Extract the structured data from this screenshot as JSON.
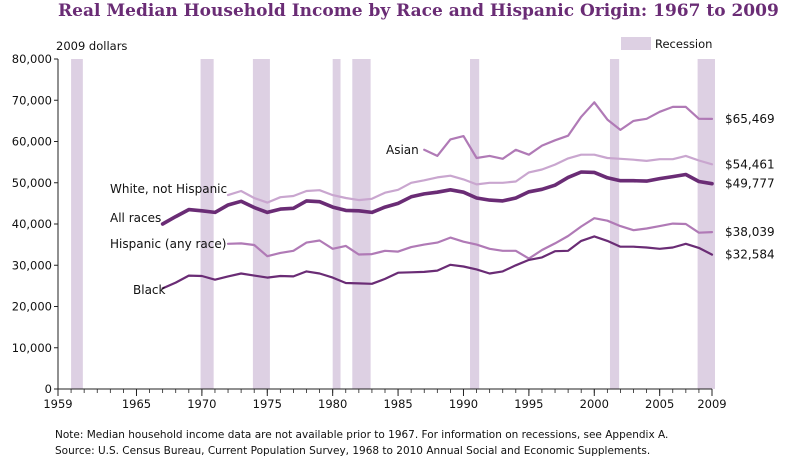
{
  "title": "Real Median Household Income by Race and Hispanic Origin: 1967 to 2009",
  "notes": {
    "note": "Note:  Median household income data are not available prior to 1967.  For information on recessions, see Appendix A.",
    "source": "Source:  U.S. Census Bureau, Current Population Survey, 1968 to 2010 Annual Social and Economic Supplements."
  },
  "chart_data": {
    "type": "line",
    "ylabel": "2009 dollars",
    "ylim": [
      0,
      80000
    ],
    "xlim": [
      1959,
      2009
    ],
    "yticks": [
      "0",
      "10,000",
      "20,000",
      "30,000",
      "40,000",
      "50,000",
      "60,000",
      "70,000",
      "80,000"
    ],
    "ytick_values": [
      0,
      10000,
      20000,
      30000,
      40000,
      50000,
      60000,
      70000,
      80000
    ],
    "xticks": [
      1959,
      1965,
      1970,
      1975,
      1980,
      1985,
      1990,
      1995,
      2000,
      2005,
      2009
    ],
    "grid": false,
    "legend": {
      "label": "Recession",
      "position": "top-right",
      "color": "#ddd0e3"
    },
    "recessions": [
      [
        1960,
        1960.9
      ],
      [
        1969.9,
        1970.9
      ],
      [
        1973.9,
        1975.2
      ],
      [
        1980,
        1980.6
      ],
      [
        1981.5,
        1982.9
      ],
      [
        1990.5,
        1991.2
      ],
      [
        2001.2,
        2001.9
      ],
      [
        2007.9,
        2009.5
      ]
    ],
    "series": [
      {
        "name": "Asian",
        "end_label": "$65,469",
        "color": "#b07ab6",
        "width": 2.2,
        "x": [
          1987,
          1988,
          1989,
          1990,
          1991,
          1992,
          1993,
          1994,
          1995,
          1996,
          1997,
          1998,
          1999,
          2000,
          2001,
          2002,
          2003,
          2004,
          2005,
          2006,
          2007,
          2008,
          2009
        ],
        "y": [
          58000,
          56500,
          60500,
          61300,
          56000,
          56500,
          55800,
          58000,
          56800,
          59000,
          60300,
          61400,
          66000,
          69500,
          65300,
          62800,
          65000,
          65500,
          67200,
          68400,
          68400,
          65500,
          65469
        ]
      },
      {
        "name": "White, not Hispanic",
        "end_label": "$54,461",
        "color": "#c9a6cf",
        "width": 2.2,
        "x": [
          1972,
          1973,
          1974,
          1975,
          1976,
          1977,
          1978,
          1979,
          1980,
          1981,
          1982,
          1983,
          1984,
          1985,
          1986,
          1987,
          1988,
          1989,
          1990,
          1991,
          1992,
          1993,
          1994,
          1995,
          1996,
          1997,
          1998,
          1999,
          2000,
          2001,
          2002,
          2003,
          2004,
          2005,
          2006,
          2007,
          2008,
          2009
        ],
        "y": [
          47000,
          48000,
          46300,
          45200,
          46500,
          46800,
          48000,
          48200,
          47000,
          46300,
          45800,
          46100,
          47600,
          48300,
          50000,
          50600,
          51300,
          51700,
          50800,
          49600,
          50000,
          50000,
          50300,
          52500,
          53200,
          54400,
          55900,
          56800,
          56800,
          56000,
          55800,
          55600,
          55300,
          55700,
          55700,
          56500,
          55400,
          54461
        ]
      },
      {
        "name": "All races",
        "end_label": "$49,777",
        "color": "#6a2c75",
        "width": 3.6,
        "x": [
          1967,
          1968,
          1969,
          1970,
          1971,
          1972,
          1973,
          1974,
          1975,
          1976,
          1977,
          1978,
          1979,
          1980,
          1981,
          1982,
          1983,
          1984,
          1985,
          1986,
          1987,
          1988,
          1989,
          1990,
          1991,
          1992,
          1993,
          1994,
          1995,
          1996,
          1997,
          1998,
          1999,
          2000,
          2001,
          2002,
          2003,
          2004,
          2005,
          2006,
          2007,
          2008,
          2009
        ],
        "y": [
          40000,
          41800,
          43500,
          43200,
          42800,
          44600,
          45500,
          44000,
          42800,
          43600,
          43800,
          45600,
          45400,
          44100,
          43300,
          43200,
          42800,
          44100,
          45000,
          46600,
          47300,
          47700,
          48300,
          47700,
          46300,
          45800,
          45600,
          46300,
          47800,
          48400,
          49400,
          51300,
          52600,
          52500,
          51200,
          50500,
          50500,
          50400,
          51000,
          51500,
          52000,
          50300,
          49777
        ]
      },
      {
        "name": "Hispanic (any race)",
        "end_label": "$38,039",
        "color": "#b07ab6",
        "width": 2.2,
        "x": [
          1972,
          1973,
          1974,
          1975,
          1976,
          1977,
          1978,
          1979,
          1980,
          1981,
          1982,
          1983,
          1984,
          1985,
          1986,
          1987,
          1988,
          1989,
          1990,
          1991,
          1992,
          1993,
          1994,
          1995,
          1996,
          1997,
          1998,
          1999,
          2000,
          2001,
          2002,
          2003,
          2004,
          2005,
          2006,
          2007,
          2008,
          2009
        ],
        "y": [
          35200,
          35300,
          34900,
          32200,
          33000,
          33500,
          35500,
          36000,
          34000,
          34700,
          32600,
          32700,
          33500,
          33300,
          34400,
          35000,
          35500,
          36700,
          35700,
          35000,
          34000,
          33500,
          33500,
          31600,
          33700,
          35300,
          37100,
          39400,
          41400,
          40800,
          39500,
          38500,
          38900,
          39500,
          40100,
          40000,
          37900,
          38039
        ]
      },
      {
        "name": "Black",
        "end_label": "$32,584",
        "color": "#6a2c75",
        "width": 2.2,
        "x": [
          1967,
          1968,
          1969,
          1970,
          1971,
          1972,
          1973,
          1974,
          1975,
          1976,
          1977,
          1978,
          1979,
          1980,
          1981,
          1982,
          1983,
          1984,
          1985,
          1986,
          1987,
          1988,
          1989,
          1990,
          1991,
          1992,
          1993,
          1994,
          1995,
          1996,
          1997,
          1998,
          1999,
          2000,
          2001,
          2002,
          2003,
          2004,
          2005,
          2006,
          2007,
          2008,
          2009
        ],
        "y": [
          24400,
          25800,
          27500,
          27400,
          26500,
          27300,
          28000,
          27500,
          27000,
          27400,
          27300,
          28500,
          28000,
          27000,
          25700,
          25600,
          25500,
          26700,
          28200,
          28300,
          28400,
          28700,
          30100,
          29700,
          29000,
          28000,
          28500,
          30000,
          31300,
          31900,
          33400,
          33500,
          35900,
          37000,
          35900,
          34500,
          34500,
          34300,
          34000,
          34300,
          35200,
          34200,
          32584
        ]
      }
    ]
  }
}
